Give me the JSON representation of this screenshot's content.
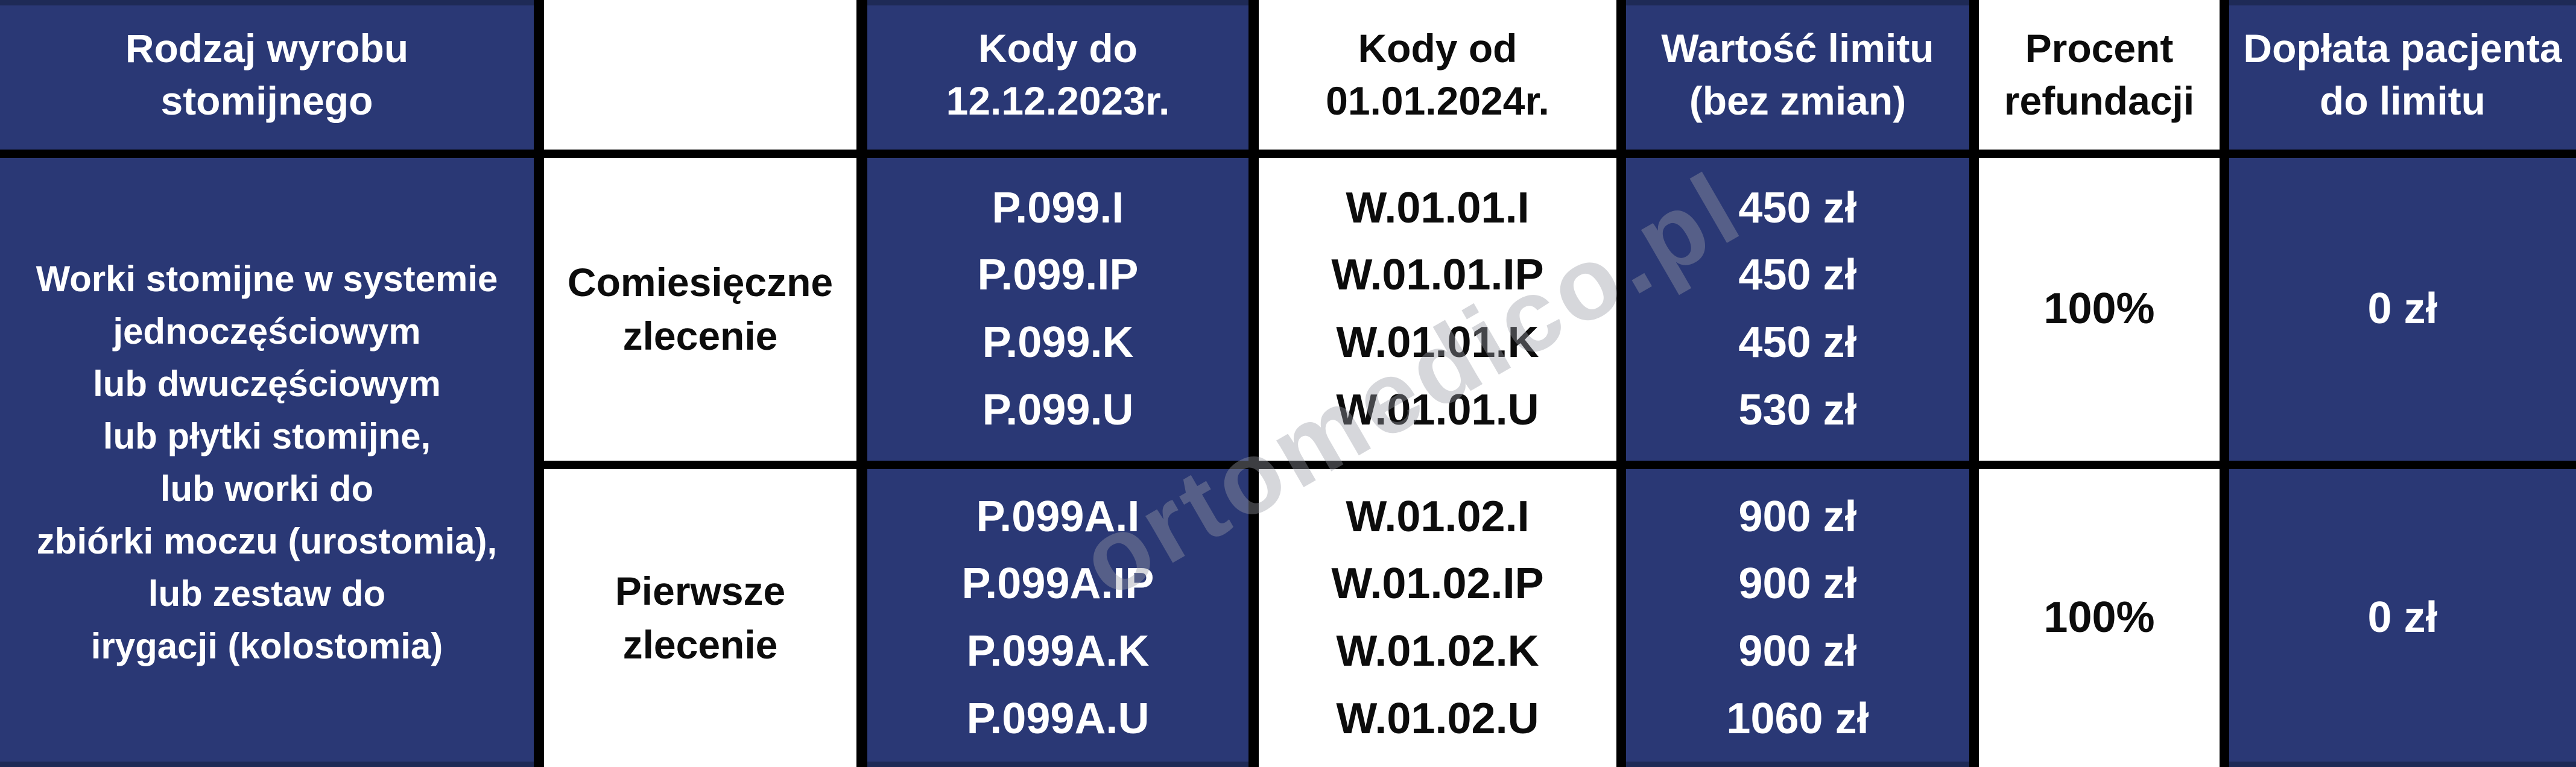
{
  "colors": {
    "cell_blue": "#2a3875",
    "edge_navy": "#1e2a56",
    "border_black": "#000000",
    "text_on_blue": "#ffffff",
    "text_on_white": "#0c0c0c"
  },
  "watermark": {
    "text": "ortomedico.pl"
  },
  "table": {
    "columns": [
      {
        "id": "rodzaj",
        "header": "Rodzaj wyrobu\nstomijnego",
        "style": "blue"
      },
      {
        "id": "zlecenie",
        "header": "",
        "style": "white"
      },
      {
        "id": "kody_do",
        "header": "Kody do\n12.12.2023r.",
        "style": "blue"
      },
      {
        "id": "kody_od",
        "header": "Kody od\n01.01.2024r.",
        "style": "white"
      },
      {
        "id": "wartosc",
        "header": "Wartość limitu\n(bez zmian)",
        "style": "blue"
      },
      {
        "id": "procent",
        "header": "Procent\nrefundacji",
        "style": "white"
      },
      {
        "id": "doplata",
        "header": "Dopłata pacjenta\ndo limitu",
        "style": "blue"
      }
    ],
    "product_cell": "Worki stomijne w systemie\njednoczęściowym\nlub dwuczęściowym\nlub płytki stomijne,\nlub worki do\nzbiórki moczu (urostomia),\nlub zestaw do\nirygacji (kolostomia)",
    "rows": [
      {
        "zlecenie": "Comiesięczne\nzlecenie",
        "kody_do": "P.099.I\nP.099.IP\nP.099.K\nP.099.U",
        "kody_od": "W.01.01.I\nW.01.01.IP\nW.01.01.K\nW.01.01.U",
        "wartosc": "450 zł\n450 zł\n450 zł\n530 zł",
        "procent": "100%",
        "doplata": "0 zł"
      },
      {
        "zlecenie": "Pierwsze\nzlecenie",
        "kody_do": "P.099A.I\nP.099A.IP\nP.099A.K\nP.099A.U",
        "kody_od": "W.01.02.I\nW.01.02.IP\nW.01.02.K\nW.01.02.U",
        "wartosc": "900 zł\n900 zł\n900 zł\n1060 zł",
        "procent": "100%",
        "doplata": "0 zł"
      }
    ]
  }
}
